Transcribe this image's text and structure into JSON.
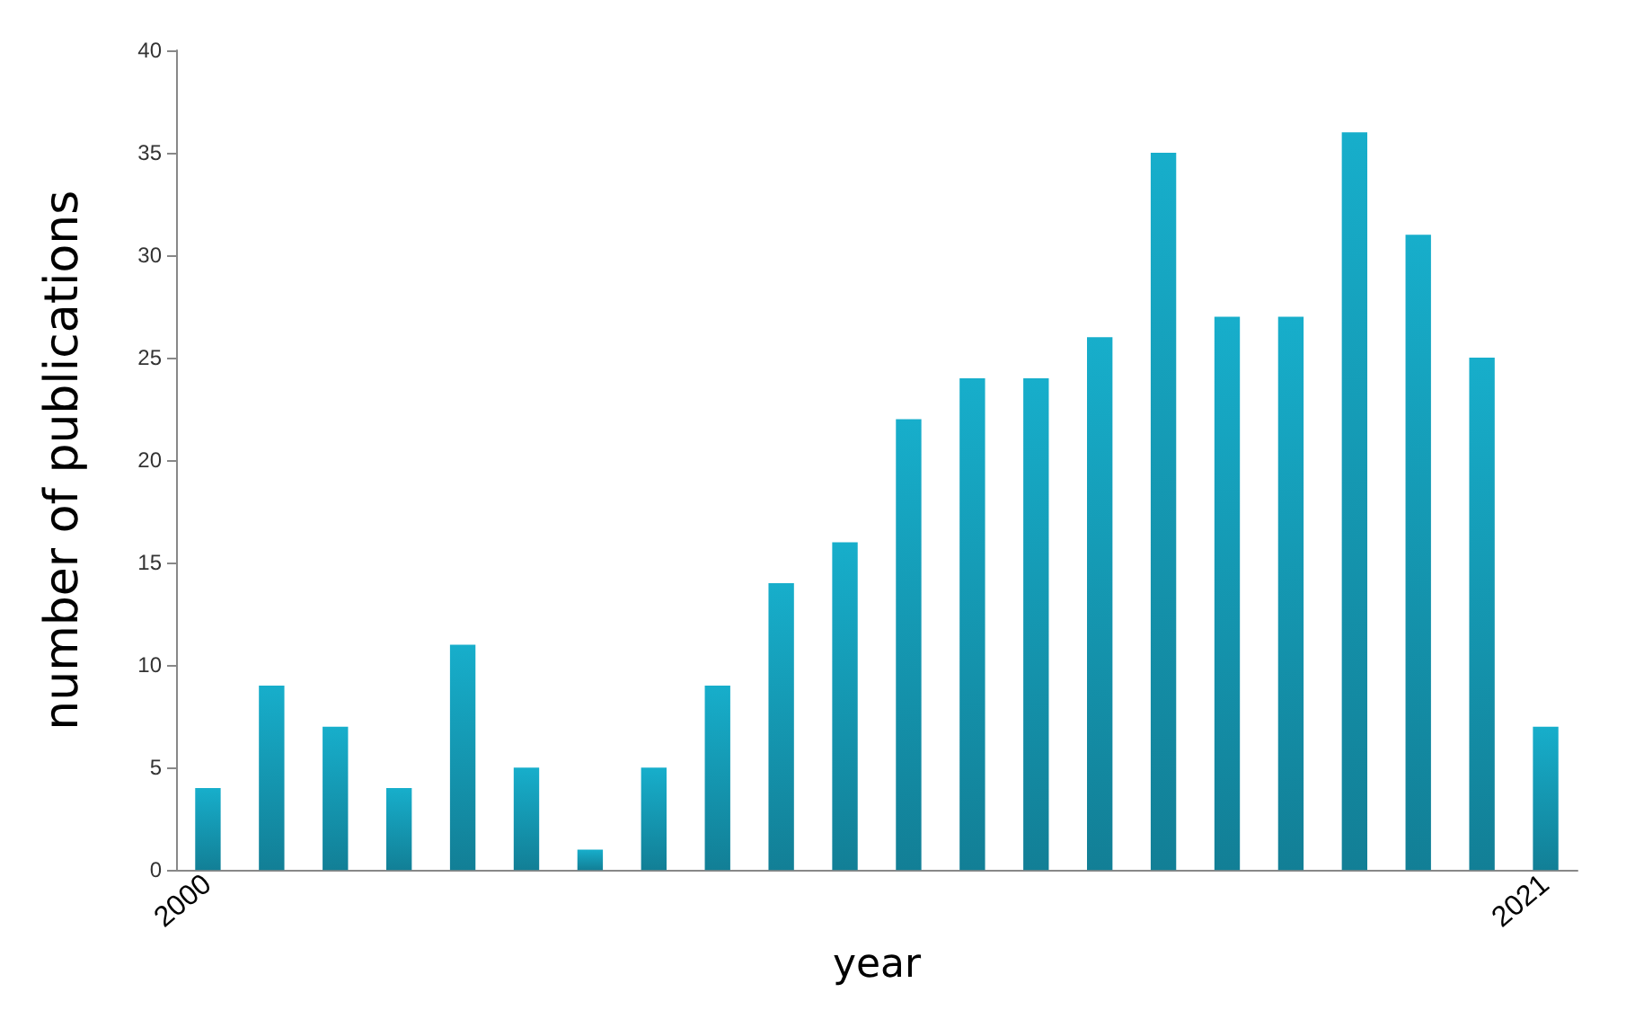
{
  "chart_data": {
    "type": "bar",
    "xlabel": "year",
    "ylabel": "number of publications",
    "categories": [
      "2000",
      null,
      null,
      null,
      null,
      null,
      null,
      null,
      null,
      null,
      null,
      null,
      null,
      null,
      null,
      null,
      null,
      null,
      null,
      null,
      null,
      "2021"
    ],
    "values": [
      4,
      9,
      7,
      4,
      11,
      5,
      1,
      5,
      9,
      14,
      16,
      22,
      24,
      24,
      26,
      35,
      27,
      27,
      36,
      31,
      25,
      7
    ],
    "color": "#17aecb",
    "ylim": [
      0,
      40
    ],
    "yticks": [
      0,
      5,
      10,
      15,
      20,
      25,
      30,
      35,
      40
    ],
    "grid": false
  }
}
